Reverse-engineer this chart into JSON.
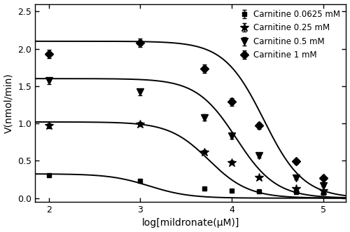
{
  "title": "",
  "xlabel": "log[mildronate(μM)]",
  "ylabel": "V(nmol/min)",
  "xlim": [
    1.85,
    5.25
  ],
  "ylim": [
    -0.05,
    2.6
  ],
  "xticks": [
    2,
    3,
    4,
    5
  ],
  "yticks": [
    0.0,
    0.5,
    1.0,
    1.5,
    2.0,
    2.5
  ],
  "series": [
    {
      "label": "Carnitine 0.0625 mM",
      "marker": "s",
      "markersize": 5,
      "x": [
        2.0,
        3.0,
        3.7,
        4.0,
        4.3,
        4.7,
        5.0
      ],
      "y": [
        0.31,
        0.23,
        0.13,
        0.1,
        0.09,
        0.08,
        0.07
      ],
      "yerr": [
        0.015,
        0.01,
        0.008,
        0.006,
        0.005,
        0.005,
        0.004
      ],
      "Vmax": 0.325,
      "Ki": 3.1
    },
    {
      "label": "Carnitine 0.25 mM",
      "marker": "*",
      "markersize": 9,
      "x": [
        2.0,
        3.0,
        3.7,
        4.0,
        4.3,
        4.7,
        5.0
      ],
      "y": [
        0.97,
        0.99,
        0.62,
        0.48,
        0.28,
        0.13,
        0.1
      ],
      "yerr": [
        0.03,
        0.03,
        0.025,
        0.025,
        0.018,
        0.012,
        0.008
      ],
      "Vmax": 1.02,
      "Ki": 3.75
    },
    {
      "label": "Carnitine 0.5 mM",
      "marker": "v",
      "markersize": 7,
      "x": [
        2.0,
        3.0,
        3.7,
        4.0,
        4.3,
        4.7,
        5.0
      ],
      "y": [
        1.57,
        1.42,
        1.08,
        0.83,
        0.57,
        0.27,
        0.17
      ],
      "yerr": [
        0.045,
        0.045,
        0.04,
        0.04,
        0.03,
        0.02,
        0.012
      ],
      "Vmax": 1.6,
      "Ki": 4.05
    },
    {
      "label": "Carnitine 1 mM",
      "marker": "D",
      "markersize": 6,
      "x": [
        2.0,
        3.0,
        3.7,
        4.0,
        4.3,
        4.7,
        5.0
      ],
      "y": [
        1.93,
        2.08,
        1.73,
        1.29,
        0.97,
        0.49,
        0.27
      ],
      "yerr": [
        0.06,
        0.06,
        0.055,
        0.05,
        0.045,
        0.03,
        0.02
      ],
      "Vmax": 2.1,
      "Ki": 4.35
    }
  ],
  "line_color": "black",
  "marker_color": "black",
  "background_color": "white",
  "legend_loc": "upper right",
  "figsize": [
    5.0,
    3.31
  ],
  "dpi": 100
}
